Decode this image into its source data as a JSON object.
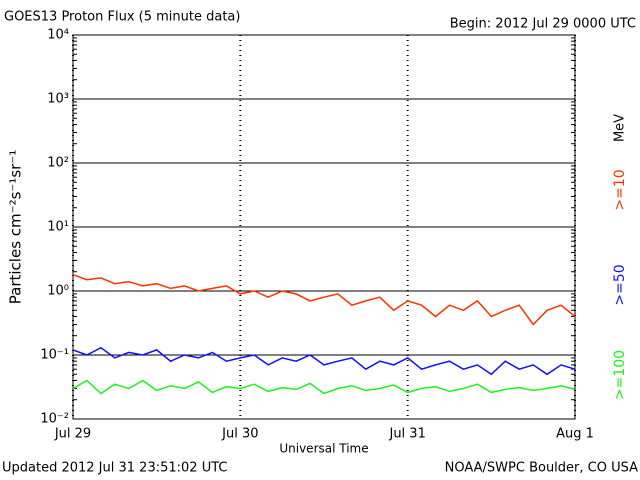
{
  "chart_data": {
    "type": "line",
    "title": "GOES13 Proton Flux (5 minute data)",
    "subtitle": "Begin: 2012 Jul 29 0000 UTC",
    "xlabel": "Universal Time",
    "ylabel": "Particles cm⁻²s⁻¹sr⁻¹",
    "legend_unit": "MeV",
    "footer_left": "Updated 2012 Jul 31 23:51:02 UTC",
    "footer_right": "NOAA/SWPC Boulder, CO USA",
    "log_y": true,
    "grid": true,
    "xlim": [
      0,
      72
    ],
    "xticks": [
      {
        "value": 0,
        "label": "Jul 29"
      },
      {
        "value": 24,
        "label": "Jul 30"
      },
      {
        "value": 48,
        "label": "Jul 31"
      },
      {
        "value": 72,
        "label": "Aug 1"
      }
    ],
    "ylim": [
      0.01,
      10000
    ],
    "yticks": [
      {
        "value": 0.01,
        "label": "10⁻²"
      },
      {
        "value": 0.1,
        "label": "10⁻¹"
      },
      {
        "value": 1,
        "label": "10⁰"
      },
      {
        "value": 10,
        "label": "10¹"
      },
      {
        "value": 100,
        "label": "10²"
      },
      {
        "value": 1000,
        "label": "10³"
      },
      {
        "value": 10000,
        "label": "10⁴"
      }
    ],
    "x": [
      0,
      2,
      4,
      6,
      8,
      10,
      12,
      14,
      16,
      18,
      20,
      22,
      24,
      26,
      28,
      30,
      32,
      34,
      36,
      38,
      40,
      42,
      44,
      46,
      48,
      50,
      52,
      54,
      56,
      58,
      60,
      62,
      64,
      66,
      68,
      70,
      72
    ],
    "series": [
      {
        "name": ">=10",
        "color": "#ff3000",
        "values": [
          1.8,
          1.5,
          1.6,
          1.3,
          1.4,
          1.2,
          1.3,
          1.1,
          1.2,
          1.0,
          1.1,
          1.2,
          0.9,
          1.0,
          0.8,
          1.0,
          0.9,
          0.7,
          0.8,
          0.9,
          0.6,
          0.7,
          0.8,
          0.5,
          0.7,
          0.6,
          0.4,
          0.6,
          0.5,
          0.7,
          0.4,
          0.5,
          0.6,
          0.3,
          0.5,
          0.6,
          0.4
        ]
      },
      {
        "name": ">=50",
        "color": "#1010ff",
        "values": [
          0.12,
          0.1,
          0.13,
          0.09,
          0.11,
          0.1,
          0.12,
          0.08,
          0.1,
          0.09,
          0.11,
          0.08,
          0.09,
          0.1,
          0.07,
          0.09,
          0.08,
          0.1,
          0.07,
          0.08,
          0.09,
          0.06,
          0.08,
          0.07,
          0.09,
          0.06,
          0.07,
          0.08,
          0.06,
          0.07,
          0.05,
          0.08,
          0.06,
          0.07,
          0.05,
          0.07,
          0.06
        ]
      },
      {
        "name": ">=100",
        "color": "#20f020",
        "values": [
          0.03,
          0.04,
          0.025,
          0.035,
          0.03,
          0.04,
          0.028,
          0.033,
          0.03,
          0.038,
          0.026,
          0.032,
          0.03,
          0.035,
          0.027,
          0.031,
          0.029,
          0.036,
          0.025,
          0.03,
          0.033,
          0.028,
          0.03,
          0.034,
          0.026,
          0.03,
          0.032,
          0.027,
          0.03,
          0.035,
          0.026,
          0.029,
          0.031,
          0.028,
          0.03,
          0.033,
          0.029
        ]
      }
    ]
  }
}
